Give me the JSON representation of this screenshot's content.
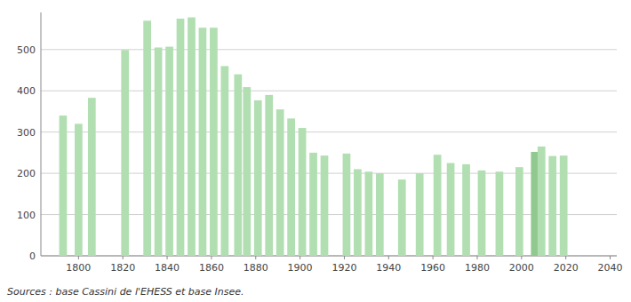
{
  "chart_data": {
    "type": "bar",
    "x": [
      1793,
      1800,
      1806,
      1821,
      1831,
      1836,
      1841,
      1846,
      1851,
      1856,
      1861,
      1866,
      1872,
      1876,
      1881,
      1886,
      1891,
      1896,
      1901,
      1906,
      1911,
      1921,
      1926,
      1931,
      1936,
      1946,
      1954,
      1962,
      1968,
      1975,
      1982,
      1990,
      1999,
      2006,
      2009,
      2014,
      2019
    ],
    "values": [
      340,
      320,
      383,
      499,
      570,
      505,
      507,
      575,
      578,
      553,
      553,
      460,
      440,
      409,
      377,
      390,
      355,
      333,
      310,
      250,
      243,
      248,
      210,
      204,
      200,
      185,
      200,
      245,
      225,
      222,
      207,
      204,
      215,
      252,
      265,
      242,
      243
    ],
    "colors": [
      "#b2dfb2",
      "#b2dfb2",
      "#b2dfb2",
      "#b2dfb2",
      "#b2dfb2",
      "#b2dfb2",
      "#b2dfb2",
      "#b2dfb2",
      "#b2dfb2",
      "#b2dfb2",
      "#b2dfb2",
      "#b2dfb2",
      "#b2dfb2",
      "#b2dfb2",
      "#b2dfb2",
      "#b2dfb2",
      "#b2dfb2",
      "#b2dfb2",
      "#b2dfb2",
      "#b2dfb2",
      "#b2dfb2",
      "#b2dfb2",
      "#b2dfb2",
      "#b2dfb2",
      "#b2dfb2",
      "#b2dfb2",
      "#b2dfb2",
      "#b2dfb2",
      "#b2dfb2",
      "#b2dfb2",
      "#b2dfb2",
      "#b2dfb2",
      "#b2dfb2",
      "#90c990",
      "#b2dfb2",
      "#b2dfb2",
      "#b2dfb2"
    ],
    "xlim": [
      1783,
      2043
    ],
    "ylim": [
      0,
      590
    ],
    "xticks": [
      1800,
      1820,
      1840,
      1860,
      1880,
      1900,
      1920,
      1940,
      1960,
      1980,
      2000,
      2020,
      2040
    ],
    "yticks": [
      0,
      100,
      200,
      300,
      400,
      500
    ],
    "grid": true,
    "annotation": "Sources : base Cassini de l'EHESS et base Insee."
  }
}
